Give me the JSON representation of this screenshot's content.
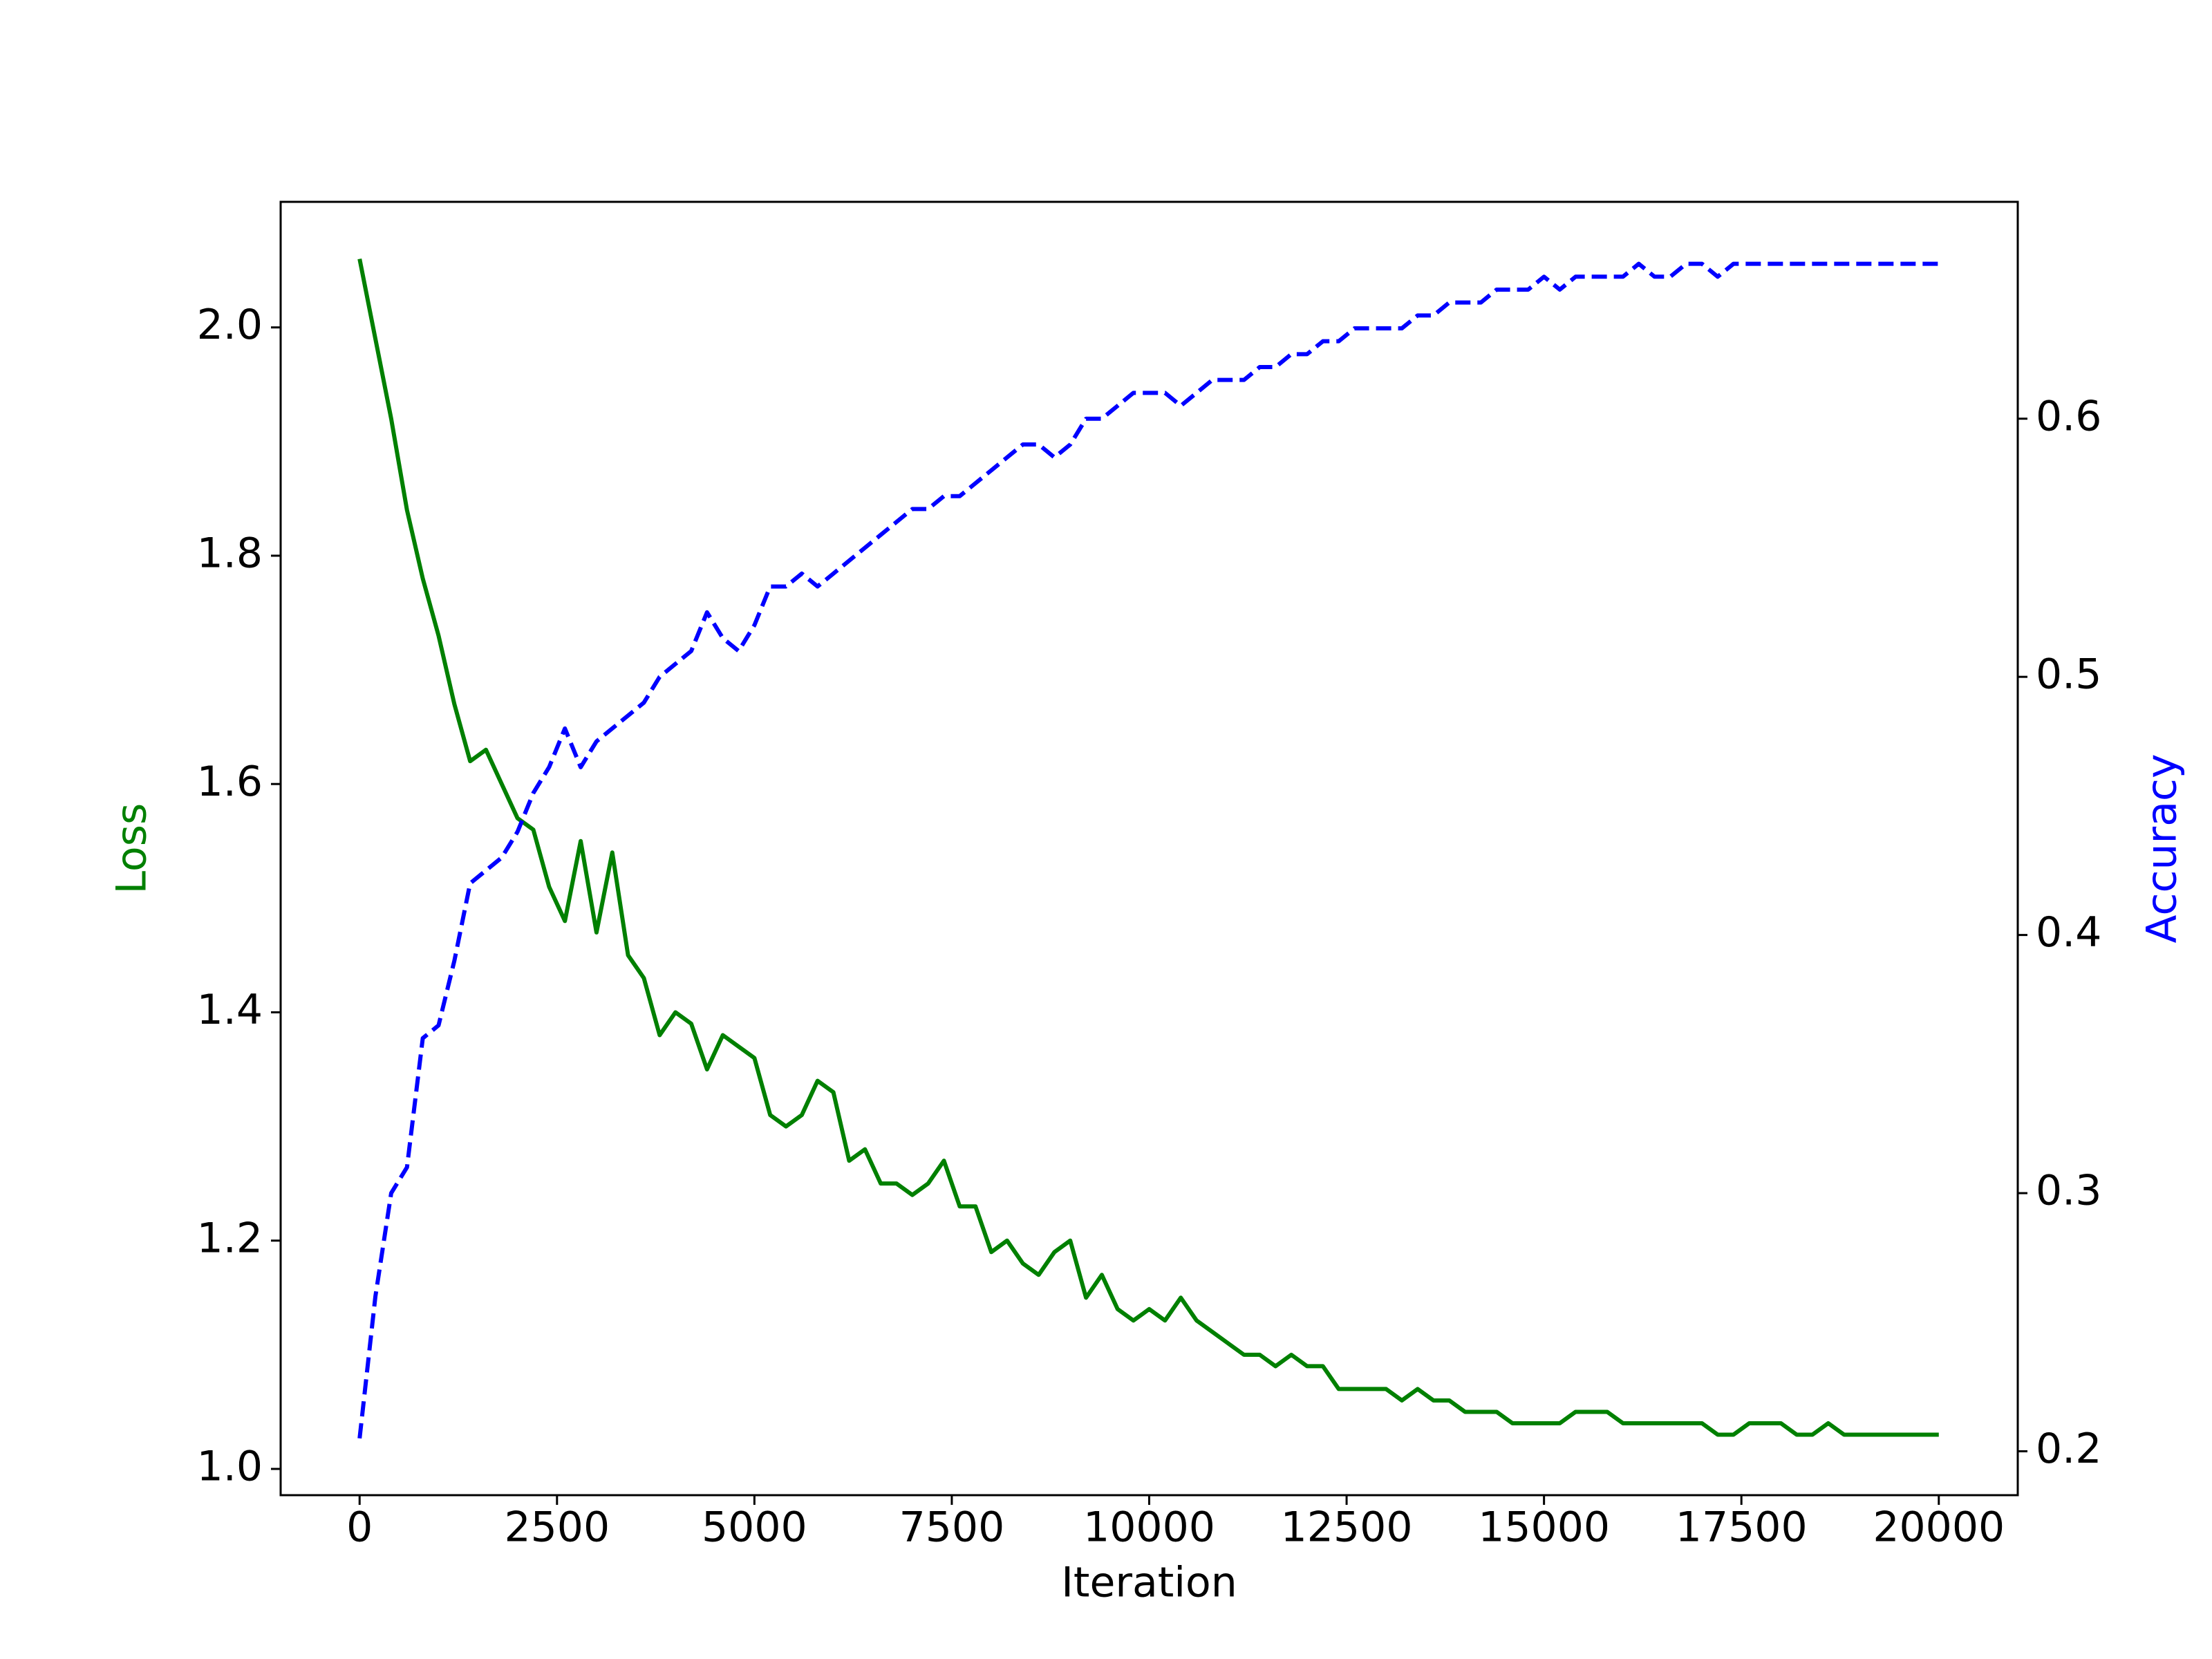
{
  "chart_data": {
    "type": "line",
    "x_label": "Iteration",
    "x": [
      0,
      200,
      400,
      600,
      800,
      1000,
      1200,
      1400,
      1600,
      1800,
      2000,
      2200,
      2400,
      2600,
      2800,
      3000,
      3200,
      3400,
      3600,
      3800,
      4000,
      4200,
      4400,
      4600,
      4800,
      5000,
      5200,
      5400,
      5600,
      5800,
      6000,
      6200,
      6400,
      6600,
      6800,
      7000,
      7200,
      7400,
      7600,
      7800,
      8000,
      8200,
      8400,
      8600,
      8800,
      9000,
      9200,
      9400,
      9600,
      9800,
      10000,
      10200,
      10400,
      10600,
      10800,
      11000,
      11200,
      11400,
      11600,
      11800,
      12000,
      12200,
      12400,
      12600,
      12800,
      13000,
      13200,
      13400,
      13600,
      13800,
      14000,
      14200,
      14400,
      14600,
      14800,
      15000,
      15200,
      15400,
      15600,
      15800,
      16000,
      16200,
      16400,
      16600,
      16800,
      17000,
      17200,
      17400,
      17600,
      17800,
      18000,
      18200,
      18400,
      18600,
      18800,
      19000,
      19200,
      19400,
      19600,
      19800,
      20000
    ],
    "series": [
      {
        "name": "Loss",
        "color": "#008000",
        "linestyle": "solid",
        "axis": "y",
        "values": [
          2.06,
          1.99,
          1.92,
          1.84,
          1.78,
          1.73,
          1.67,
          1.62,
          1.63,
          1.6,
          1.57,
          1.56,
          1.51,
          1.48,
          1.55,
          1.47,
          1.54,
          1.45,
          1.43,
          1.38,
          1.4,
          1.39,
          1.35,
          1.38,
          1.37,
          1.36,
          1.31,
          1.3,
          1.31,
          1.34,
          1.33,
          1.27,
          1.28,
          1.25,
          1.25,
          1.24,
          1.25,
          1.27,
          1.23,
          1.23,
          1.19,
          1.2,
          1.18,
          1.17,
          1.19,
          1.2,
          1.15,
          1.17,
          1.14,
          1.13,
          1.14,
          1.13,
          1.15,
          1.13,
          1.12,
          1.11,
          1.1,
          1.1,
          1.09,
          1.1,
          1.09,
          1.09,
          1.07,
          1.07,
          1.07,
          1.07,
          1.06,
          1.07,
          1.06,
          1.06,
          1.05,
          1.05,
          1.05,
          1.04,
          1.04,
          1.04,
          1.04,
          1.05,
          1.05,
          1.05,
          1.04,
          1.04,
          1.04,
          1.04,
          1.04,
          1.04,
          1.03,
          1.03,
          1.04,
          1.04,
          1.04,
          1.03,
          1.03,
          1.04,
          1.03,
          1.03,
          1.03,
          1.03,
          1.03,
          1.03,
          1.03
        ]
      },
      {
        "name": "Accuracy",
        "color": "#0000ff",
        "linestyle": "dashed",
        "axis": "y2",
        "values": [
          0.205,
          0.26,
          0.3,
          0.31,
          0.36,
          0.365,
          0.39,
          0.42,
          0.425,
          0.43,
          0.44,
          0.455,
          0.465,
          0.48,
          0.465,
          0.475,
          0.48,
          0.485,
          0.49,
          0.5,
          0.505,
          0.51,
          0.525,
          0.515,
          0.51,
          0.52,
          0.535,
          0.535,
          0.54,
          0.535,
          0.54,
          0.545,
          0.55,
          0.555,
          0.56,
          0.565,
          0.565,
          0.57,
          0.57,
          0.575,
          0.58,
          0.585,
          0.59,
          0.59,
          0.585,
          0.59,
          0.6,
          0.6,
          0.605,
          0.61,
          0.61,
          0.61,
          0.605,
          0.61,
          0.615,
          0.615,
          0.615,
          0.62,
          0.62,
          0.625,
          0.625,
          0.63,
          0.63,
          0.635,
          0.635,
          0.635,
          0.635,
          0.64,
          0.64,
          0.645,
          0.645,
          0.645,
          0.65,
          0.65,
          0.65,
          0.655,
          0.65,
          0.655,
          0.655,
          0.655,
          0.655,
          0.66,
          0.655,
          0.655,
          0.66,
          0.66,
          0.655,
          0.66,
          0.66,
          0.66,
          0.66,
          0.66,
          0.66,
          0.66,
          0.66,
          0.66,
          0.66,
          0.66,
          0.66,
          0.66,
          0.66
        ]
      }
    ],
    "xlim": [
      -1000,
      21000
    ],
    "xticks": [
      0,
      2500,
      5000,
      7500,
      10000,
      12500,
      15000,
      17500,
      20000
    ],
    "ylim": [
      0.977,
      2.11
    ],
    "yticks": [
      {
        "value": 1,
        "label": "1.0"
      },
      1.2,
      1.4,
      1.6,
      1.8,
      {
        "value": 2,
        "label": "2.0"
      }
    ],
    "y2lim": [
      0.183,
      0.684
    ],
    "y2ticks": [
      0.2,
      0.3,
      0.4,
      0.5,
      0.6
    ],
    "grid": false
  }
}
